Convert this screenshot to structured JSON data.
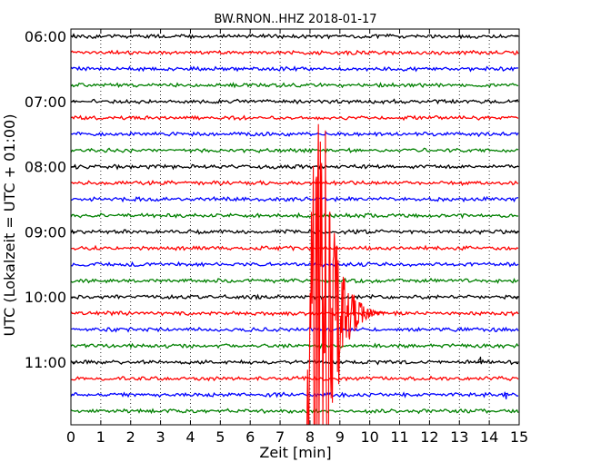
{
  "chart_data": {
    "type": "line",
    "title": "BW.RNON..HHZ 2018-01-17",
    "xlabel": "Zeit  [min]",
    "ylabel": "UTC (Lokalzeit = UTC + 01:00)",
    "xlim": [
      0,
      15
    ],
    "x_ticks": [
      "0",
      "1",
      "2",
      "3",
      "4",
      "5",
      "6",
      "7",
      "8",
      "9",
      "10",
      "11",
      "12",
      "13",
      "14",
      "15"
    ],
    "y_ticks": [
      "06:00",
      "07:00",
      "08:00",
      "09:00",
      "10:00",
      "11:00"
    ],
    "grid": "vertical dotted",
    "row_interval_minutes": 15,
    "colors": [
      "#000000",
      "#ff0000",
      "#0000ff",
      "#008000"
    ],
    "rows": [
      {
        "start": "06:00",
        "color": "#000000"
      },
      {
        "start": "06:15",
        "color": "#ff0000"
      },
      {
        "start": "06:30",
        "color": "#0000ff"
      },
      {
        "start": "06:45",
        "color": "#008000"
      },
      {
        "start": "07:00",
        "color": "#000000"
      },
      {
        "start": "07:15",
        "color": "#ff0000"
      },
      {
        "start": "07:30",
        "color": "#0000ff"
      },
      {
        "start": "07:45",
        "color": "#008000"
      },
      {
        "start": "08:00",
        "color": "#000000"
      },
      {
        "start": "08:15",
        "color": "#ff0000"
      },
      {
        "start": "08:30",
        "color": "#0000ff"
      },
      {
        "start": "08:45",
        "color": "#008000"
      },
      {
        "start": "09:00",
        "color": "#000000"
      },
      {
        "start": "09:15",
        "color": "#ff0000"
      },
      {
        "start": "09:30",
        "color": "#0000ff"
      },
      {
        "start": "09:45",
        "color": "#008000"
      },
      {
        "start": "10:00",
        "color": "#000000"
      },
      {
        "start": "10:15",
        "color": "#ff0000"
      },
      {
        "start": "10:30",
        "color": "#0000ff"
      },
      {
        "start": "10:45",
        "color": "#008000"
      },
      {
        "start": "11:00",
        "color": "#000000"
      },
      {
        "start": "11:15",
        "color": "#ff0000"
      },
      {
        "start": "11:30",
        "color": "#0000ff"
      },
      {
        "start": "11:45",
        "color": "#008000"
      }
    ],
    "events": [
      {
        "row_start": "10:15",
        "color": "#ff0000",
        "onset_min": 7.9,
        "peak_min": 8.4,
        "end_min": 10.5,
        "clipped": true
      },
      {
        "row_start": "11:00",
        "color": "#000000",
        "onset_min": 13.6,
        "end_min": 13.75,
        "clipped": false
      },
      {
        "row_start": "11:30",
        "color": "#0000ff",
        "onset_min": 14.5,
        "end_min": 14.6,
        "clipped": false
      }
    ]
  }
}
